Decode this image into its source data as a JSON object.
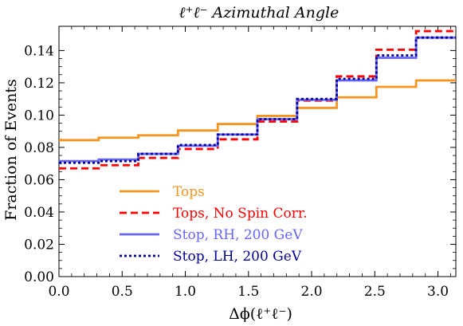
{
  "chart_data": {
    "type": "line",
    "step": true,
    "title": "ℓ⁺ℓ⁻ Azimuthal Angle",
    "xlabel": "Δϕ(ℓ⁺ℓ⁻)",
    "ylabel": "Fraction of Events",
    "xlim": [
      0,
      3.1416
    ],
    "ylim": [
      0,
      0.155
    ],
    "xticks": [
      0.0,
      0.5,
      1.0,
      1.5,
      2.0,
      2.5,
      3.0
    ],
    "xtick_labels": [
      "0.0",
      "0.5",
      "1.0",
      "1.5",
      "2.0",
      "2.5",
      "3.0"
    ],
    "yticks": [
      0.0,
      0.02,
      0.04,
      0.06,
      0.08,
      0.1,
      0.12,
      0.14
    ],
    "ytick_labels": [
      "0.00",
      "0.02",
      "0.04",
      "0.06",
      "0.08",
      "0.10",
      "0.12",
      "0.14"
    ],
    "bin_edges": [
      0,
      0.314,
      0.628,
      0.942,
      1.257,
      1.571,
      1.885,
      2.199,
      2.513,
      2.827,
      3.1416
    ],
    "legend_position": "bottom-left",
    "series": [
      {
        "name": "Tops",
        "color": "#f7941d",
        "dash": "solid",
        "values": [
          0.0845,
          0.086,
          0.0875,
          0.0905,
          0.0945,
          0.0995,
          0.1045,
          0.111,
          0.1175,
          0.1215
        ]
      },
      {
        "name": "Tops, No Spin Corr.",
        "color": "#ff0000",
        "dash": "dashed",
        "values": [
          0.067,
          0.069,
          0.0735,
          0.079,
          0.085,
          0.096,
          0.109,
          0.124,
          0.1405,
          0.152
        ]
      },
      {
        "name": "Stop, RH, 200 GeV",
        "color": "#6666ff",
        "dash": "solid",
        "values": [
          0.0715,
          0.0725,
          0.076,
          0.081,
          0.088,
          0.0975,
          0.1095,
          0.1215,
          0.1355,
          0.148
        ]
      },
      {
        "name": "Stop, LH, 200 GeV",
        "color": "#000099",
        "dash": "dotted",
        "values": [
          0.0705,
          0.0715,
          0.076,
          0.0815,
          0.088,
          0.0975,
          0.11,
          0.1225,
          0.137,
          0.148
        ]
      }
    ]
  }
}
